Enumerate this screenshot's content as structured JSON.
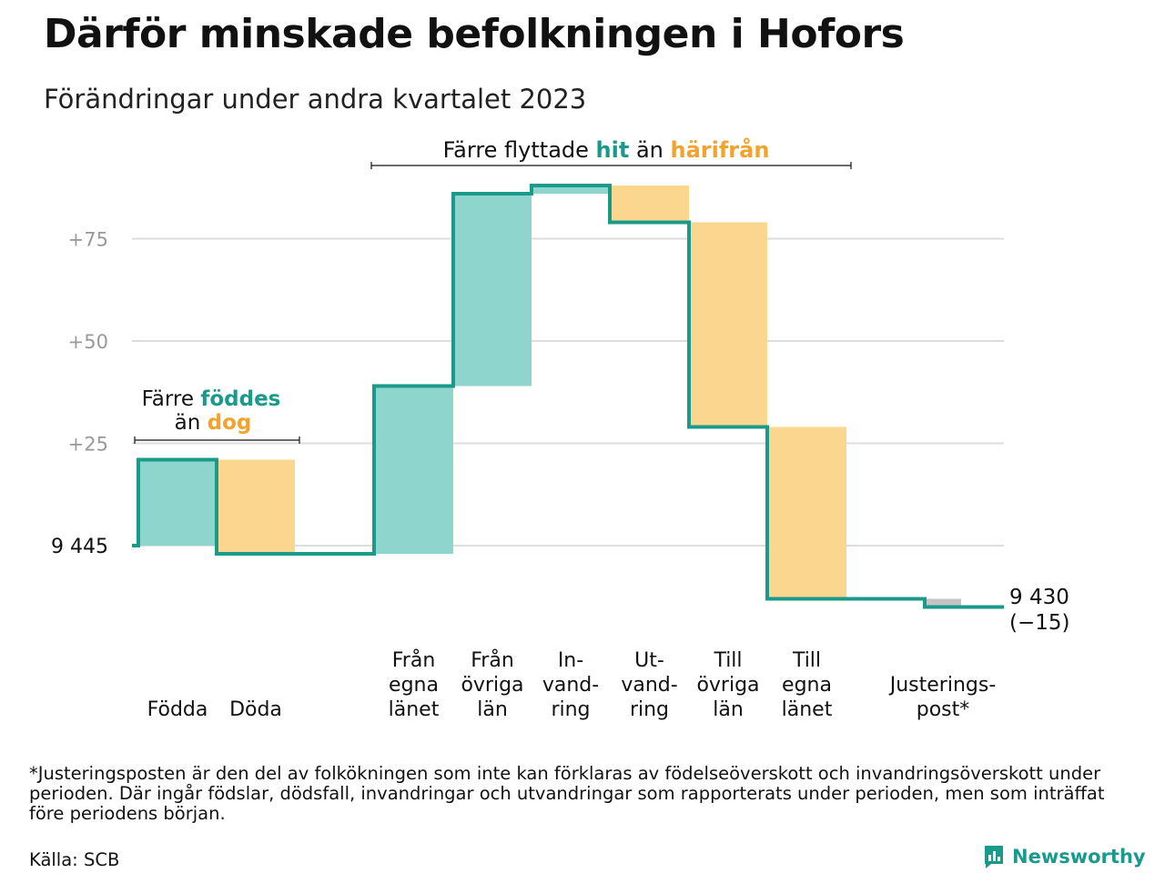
{
  "title": "Därför minskade befolkningen i Hofors",
  "subtitle": "Förändringar under andra kvartalet 2023",
  "colors": {
    "teal_line": "#1a9a8a",
    "teal_fill": "#8dd5cd",
    "orange_fill": "#fbd68e",
    "orange_text": "#f1a32d",
    "grey_fill": "#c4c4c4",
    "grid": "#dddddd",
    "tick_text": "#999999"
  },
  "chart_data": {
    "type": "waterfall",
    "baseline_label": "9  445",
    "start": 0,
    "categories": [
      {
        "lines": [
          "Födda"
        ],
        "delta": 21,
        "kind": "in"
      },
      {
        "lines": [
          "Döda"
        ],
        "delta": -23,
        "kind": "out"
      },
      {
        "lines": [
          "Från",
          "egna",
          "länet"
        ],
        "delta": 41,
        "kind": "in"
      },
      {
        "lines": [
          "Från",
          "övriga",
          "län"
        ],
        "delta": 47,
        "kind": "in"
      },
      {
        "lines": [
          "In-",
          "vand-",
          "ring"
        ],
        "delta": 2,
        "kind": "in"
      },
      {
        "lines": [
          "Ut-",
          "vand-",
          "ring"
        ],
        "delta": -9,
        "kind": "out"
      },
      {
        "lines": [
          "Till",
          "övriga",
          "län"
        ],
        "delta": -50,
        "kind": "out"
      },
      {
        "lines": [
          "Till",
          "egna",
          "länet"
        ],
        "delta": -42,
        "kind": "out"
      },
      {
        "lines": [
          "Justerings-",
          "post*"
        ],
        "delta": -2,
        "kind": "adjust"
      }
    ],
    "y_ticks": [
      {
        "value": 25,
        "label": "+25"
      },
      {
        "value": 50,
        "label": "+50"
      },
      {
        "value": 75,
        "label": "+75"
      }
    ],
    "ylim": [
      -15,
      88
    ],
    "end_label": [
      "9 430",
      "(−15)"
    ],
    "annotations": {
      "births": {
        "w1": "Färre ",
        "w2": "föddes",
        "w3": "än ",
        "w4": "dog"
      },
      "moves": {
        "w1": "Färre flyttade ",
        "w2": "hit",
        "w3": " än ",
        "w4": "härifrån"
      }
    }
  },
  "footnote": "*Justeringsposten är den del av folkökningen som inte kan förklaras av födelseöverskott och invandringsöverskott under perioden. Där ingår födslar, dödsfall, invandringar och utvandringar som rapporterats under perioden, men som inträffat före periodens början.",
  "source": "Källa: SCB",
  "logo_text": "Newsworthy"
}
